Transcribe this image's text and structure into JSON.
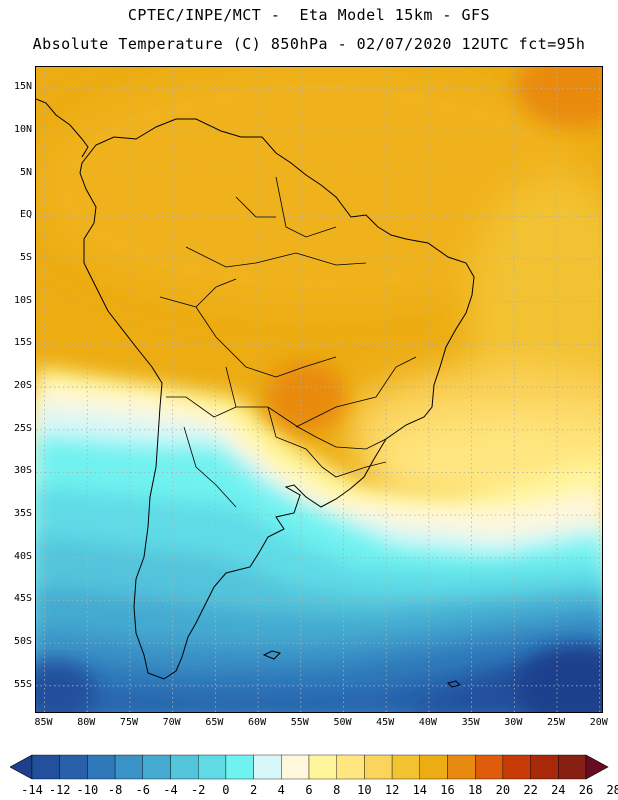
{
  "header": {
    "title_line1": "CPTEC/INPE/MCT -  Eta Model 15km - GFS",
    "title_line2": "Absolute Temperature (C) 850hPa - 02/07/2020 12UTC fct=95h"
  },
  "map": {
    "lat_labels": [
      "15N",
      "10N",
      "5N",
      "EQ",
      "5S",
      "10S",
      "15S",
      "20S",
      "25S",
      "30S",
      "35S",
      "40S",
      "45S",
      "50S",
      "55S"
    ],
    "lat_values": [
      15,
      10,
      5,
      0,
      -5,
      -10,
      -15,
      -20,
      -25,
      -30,
      -35,
      -40,
      -45,
      -50,
      -55
    ],
    "lon_labels": [
      "85W",
      "80W",
      "75W",
      "70W",
      "65W",
      "60W",
      "55W",
      "50W",
      "45W",
      "40W",
      "35W",
      "30W",
      "25W",
      "20W"
    ],
    "lon_values": [
      -85,
      -80,
      -75,
      -70,
      -65,
      -60,
      -55,
      -50,
      -45,
      -40,
      -35,
      -30,
      -25,
      -20
    ],
    "lat_range": [
      -58.3,
      17.5
    ],
    "lon_range": [
      -86,
      -19.5
    ],
    "grid": "dotted",
    "land_outline_color": "#000000"
  },
  "colorbar": {
    "tick_labels": [
      "-14",
      "-12",
      "-10",
      "-8",
      "-6",
      "-4",
      "-2",
      "0",
      "2",
      "4",
      "6",
      "8",
      "10",
      "12",
      "14",
      "16",
      "18",
      "20",
      "22",
      "24",
      "26",
      "28"
    ],
    "colors": [
      "#1e3f8c",
      "#22509c",
      "#2861aa",
      "#2f78b9",
      "#3a92c6",
      "#45aad0",
      "#52c4db",
      "#5fdbe6",
      "#6ff2f0",
      "#d8f7f8",
      "#fff7dc",
      "#fff59a",
      "#ffe680",
      "#fbd45e",
      "#f3c233",
      "#ecac12",
      "#e98a10",
      "#de5c0a",
      "#c73c06",
      "#a8280a",
      "#872012",
      "#6a0b24"
    ],
    "extends": "both"
  }
}
